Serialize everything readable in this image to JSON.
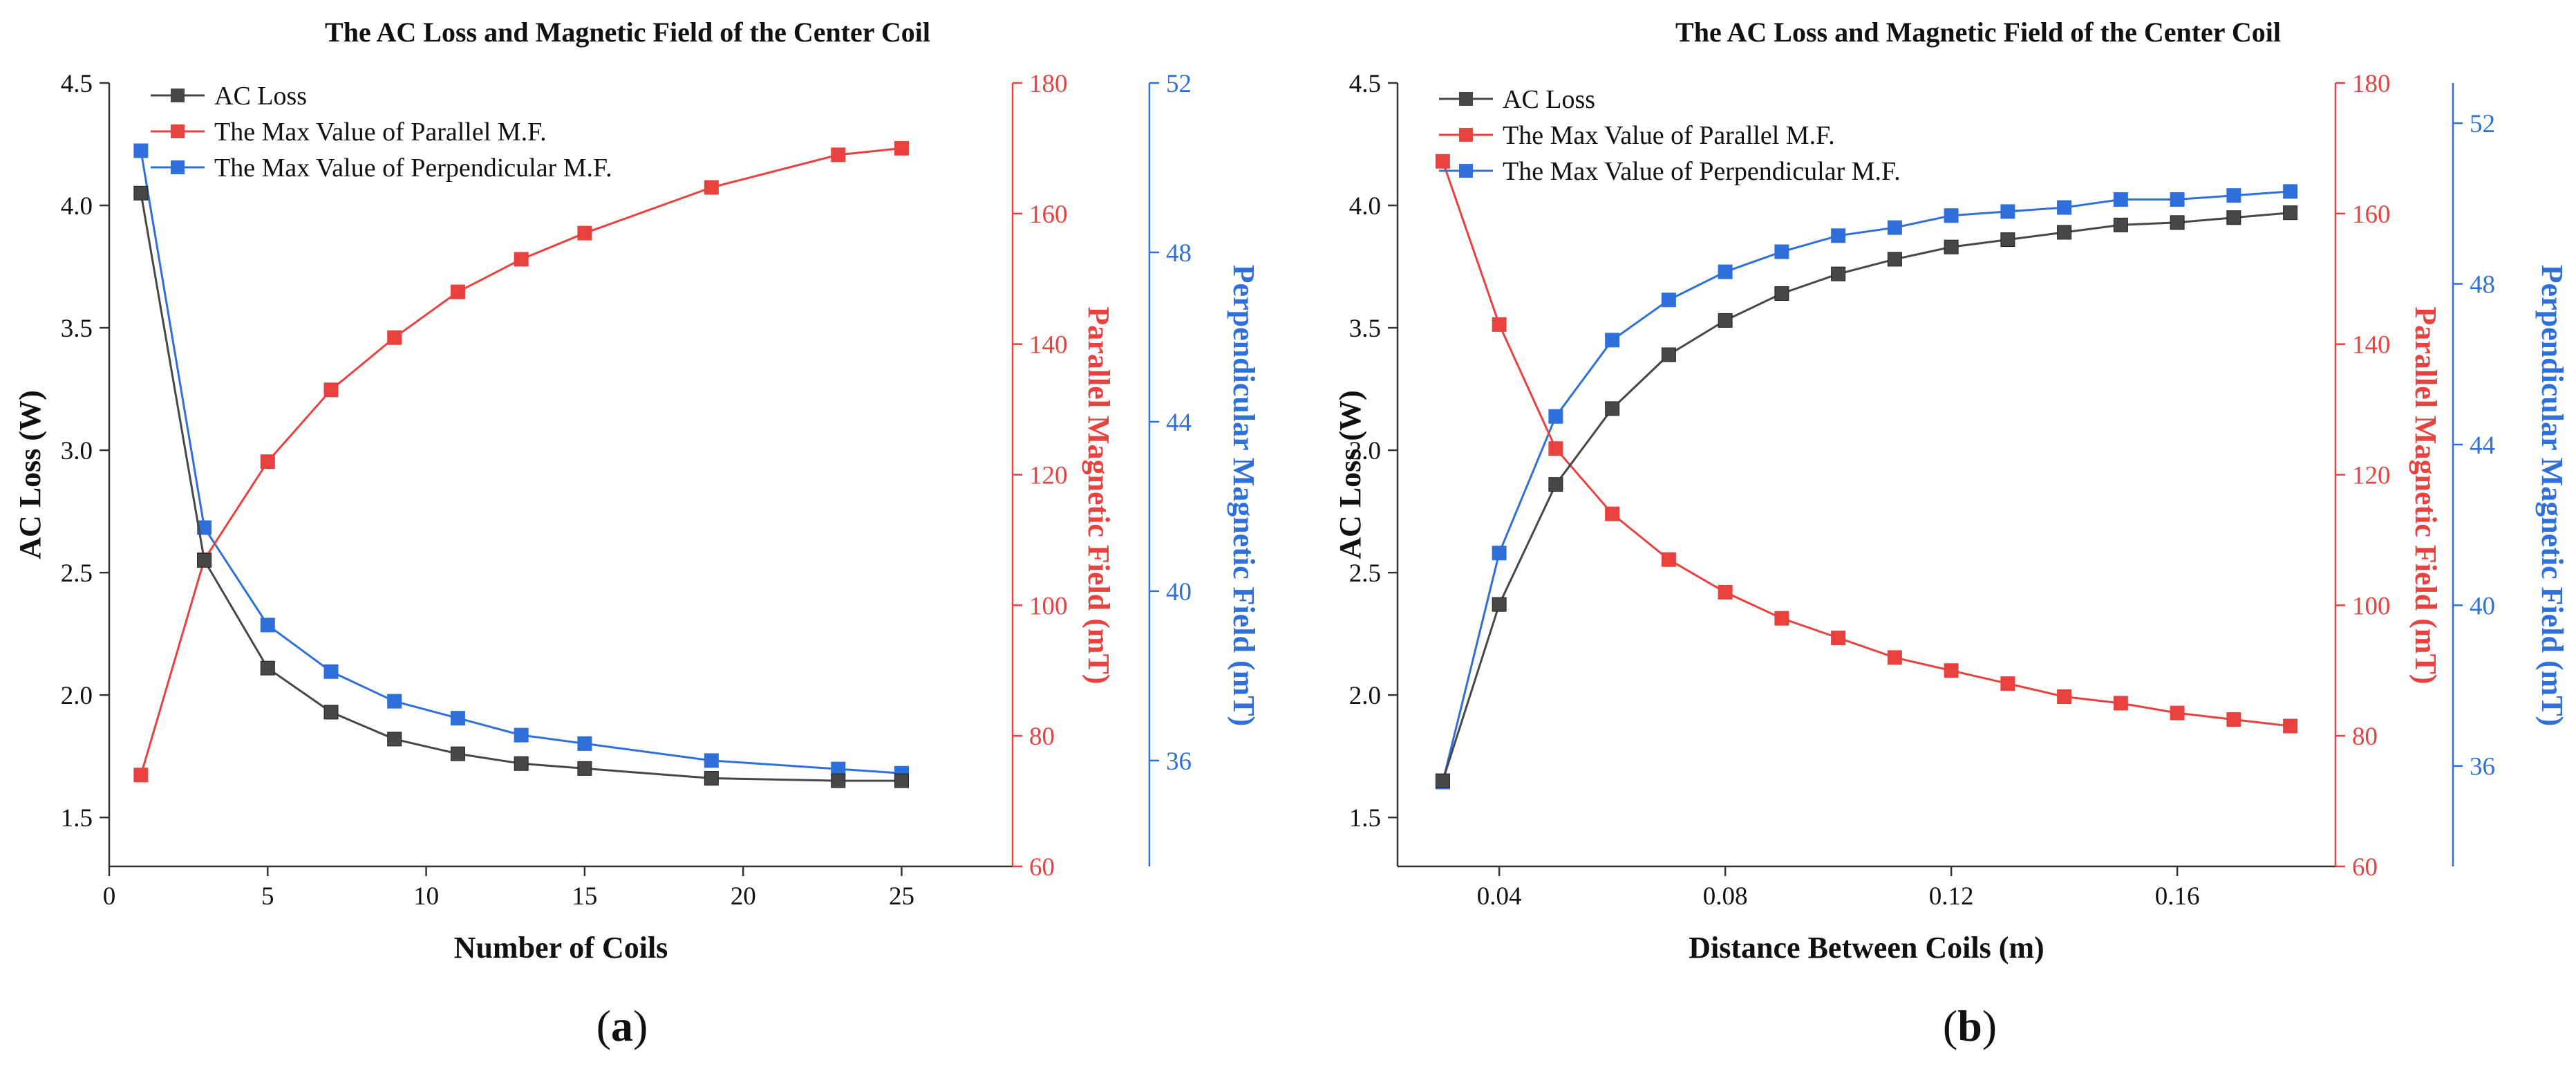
{
  "colors": {
    "ac": "#474747",
    "parallel": "#e8413e",
    "perpendicular": "#2f6fdb",
    "axis": "#333333"
  },
  "chart_data": [
    {
      "type": "line",
      "caption": "(a)",
      "caption_parts": {
        "open": "(",
        "letter": "a",
        "close": ")"
      },
      "title": "The AC Loss and Magnetic Field of the Center Coil",
      "xlabel": "Number of Coils",
      "xlim": [
        0,
        28.5
      ],
      "xticks": [
        0,
        5,
        10,
        15,
        20,
        25
      ],
      "xtick_labels": [
        "0",
        "5",
        "10",
        "15",
        "20",
        "25"
      ],
      "axes": [
        {
          "side": "left",
          "label": "AC Loss (W)",
          "lim": [
            1.3,
            4.5
          ],
          "ticks": [
            1.5,
            2.0,
            2.5,
            3.0,
            3.5,
            4.0,
            4.5
          ],
          "tick_labels": [
            "1.5",
            "2.0",
            "2.5",
            "3.0",
            "3.5",
            "4.0",
            "4.5"
          ],
          "color": "ac"
        },
        {
          "side": "right1",
          "label": "Parallel Magnetic Field (mT)",
          "lim": [
            60,
            180
          ],
          "ticks": [
            60,
            80,
            100,
            120,
            140,
            160,
            180
          ],
          "tick_labels": [
            "60",
            "80",
            "100",
            "120",
            "140",
            "160",
            "180"
          ],
          "color": "parallel"
        },
        {
          "side": "right2",
          "label": "Perpendicular Magnetic Field (mT)",
          "lim": [
            33.5,
            52
          ],
          "ticks": [
            36,
            40,
            44,
            48,
            52
          ],
          "tick_labels": [
            "36",
            "40",
            "44",
            "48",
            "52"
          ],
          "color": "perpendicular"
        }
      ],
      "series": [
        {
          "name": "AC Loss",
          "axis": 0,
          "color": "ac",
          "x": [
            1,
            3,
            5,
            7,
            9,
            11,
            13,
            15,
            19,
            23,
            25
          ],
          "y": [
            4.05,
            2.55,
            2.11,
            1.93,
            1.82,
            1.76,
            1.72,
            1.7,
            1.66,
            1.65,
            1.65
          ]
        },
        {
          "name": "The Max Value of  Parallel M.F.",
          "axis": 1,
          "color": "parallel",
          "x": [
            1,
            3,
            5,
            7,
            9,
            11,
            13,
            15,
            19,
            23,
            25
          ],
          "y": [
            74,
            107,
            122,
            133,
            141,
            148,
            153,
            157,
            164,
            169,
            170
          ]
        },
        {
          "name": "The Max Value of Perpendicular M.F.",
          "axis": 2,
          "color": "perpendicular",
          "x": [
            1,
            3,
            5,
            7,
            9,
            11,
            13,
            15,
            19,
            23,
            25
          ],
          "y": [
            50.4,
            41.5,
            39.2,
            38.1,
            37.4,
            37.0,
            36.6,
            36.4,
            36.0,
            35.8,
            35.7
          ]
        }
      ]
    },
    {
      "type": "line",
      "caption": "(b)",
      "caption_parts": {
        "open": "(",
        "letter": "b",
        "close": ")"
      },
      "title": "The AC Loss and Magnetic Field of the Center Coil",
      "xlabel": "Distance Between Coils (m)",
      "xlim": [
        0.022,
        0.188
      ],
      "xticks": [
        0.04,
        0.08,
        0.12,
        0.16
      ],
      "xtick_labels": [
        "0.04",
        "0.08",
        "0.12",
        "0.16"
      ],
      "axes": [
        {
          "side": "left",
          "label": "AC Loss (W)",
          "lim": [
            1.3,
            4.5
          ],
          "ticks": [
            1.5,
            2.0,
            2.5,
            3.0,
            3.5,
            4.0,
            4.5
          ],
          "tick_labels": [
            "1.5",
            "2.0",
            "2.5",
            "3.0",
            "3.5",
            "4.0",
            "4.5"
          ],
          "color": "ac"
        },
        {
          "side": "right1",
          "label": "Parallel Magnetic Field (mT)",
          "lim": [
            60,
            180
          ],
          "ticks": [
            60,
            80,
            100,
            120,
            140,
            160,
            180
          ],
          "tick_labels": [
            "60",
            "80",
            "100",
            "120",
            "140",
            "160",
            "180"
          ],
          "color": "parallel"
        },
        {
          "side": "right2",
          "label": "Perpendicular Magnetic Field (mT)",
          "lim": [
            33.5,
            53
          ],
          "ticks": [
            36,
            40,
            44,
            48,
            52
          ],
          "tick_labels": [
            "36",
            "40",
            "44",
            "48",
            "52"
          ],
          "color": "perpendicular"
        }
      ],
      "series": [
        {
          "name": "AC Loss",
          "axis": 0,
          "color": "ac",
          "x": [
            0.03,
            0.04,
            0.05,
            0.06,
            0.07,
            0.08,
            0.09,
            0.1,
            0.11,
            0.12,
            0.13,
            0.14,
            0.15,
            0.16,
            0.17,
            0.18
          ],
          "y": [
            1.65,
            2.37,
            2.86,
            3.17,
            3.39,
            3.53,
            3.64,
            3.72,
            3.78,
            3.83,
            3.86,
            3.89,
            3.92,
            3.93,
            3.95,
            3.97
          ]
        },
        {
          "name": "The Max Value of  Parallel M.F.",
          "axis": 1,
          "color": "parallel",
          "x": [
            0.03,
            0.04,
            0.05,
            0.06,
            0.07,
            0.08,
            0.09,
            0.1,
            0.11,
            0.12,
            0.13,
            0.14,
            0.15,
            0.16,
            0.17,
            0.18
          ],
          "y": [
            168,
            143,
            124,
            114,
            107,
            102,
            98,
            95,
            92,
            90,
            88,
            86,
            85,
            83.5,
            82.5,
            81.5
          ]
        },
        {
          "name": "The Max Value of Perpendicular M.F.",
          "axis": 2,
          "color": "perpendicular",
          "x": [
            0.03,
            0.04,
            0.05,
            0.06,
            0.07,
            0.08,
            0.09,
            0.1,
            0.11,
            0.12,
            0.13,
            0.14,
            0.15,
            0.16,
            0.17,
            0.18
          ],
          "y": [
            35.6,
            41.3,
            44.7,
            46.6,
            47.6,
            48.3,
            48.8,
            49.2,
            49.4,
            49.7,
            49.8,
            49.9,
            50.1,
            50.1,
            50.2,
            50.3
          ]
        }
      ]
    }
  ]
}
